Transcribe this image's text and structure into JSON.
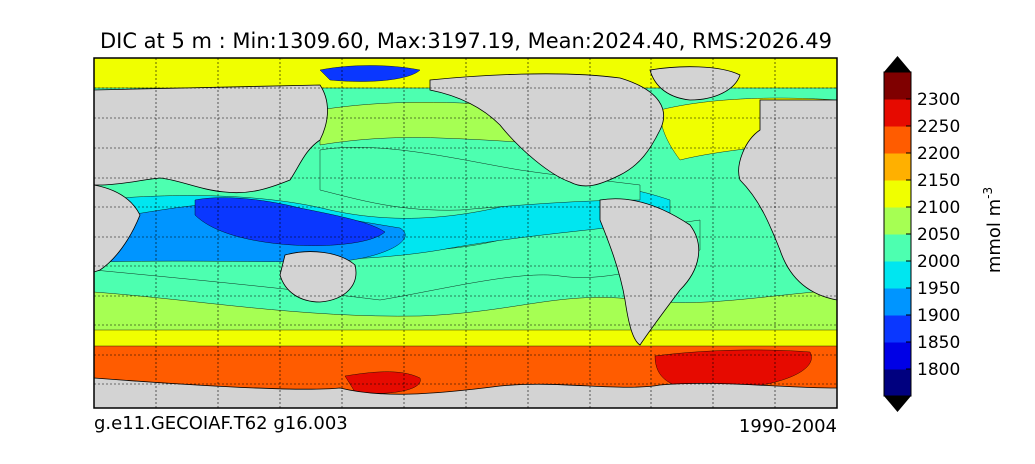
{
  "chart_data": {
    "type": "heatmap",
    "title": "DIC at 5 m : Min:1309.60, Max:3197.19, Mean:2024.40, RMS:2026.49",
    "footer_left": "g.e11.GECOIAF.T62 g16.003",
    "footer_right": "1990-2004",
    "colorbar": {
      "unit_label": "mmol m",
      "unit_exponent": "-3",
      "ticks": [
        1800,
        1850,
        1900,
        1950,
        2000,
        2050,
        2100,
        2150,
        2200,
        2250,
        2300
      ],
      "levels": [
        1750,
        1800,
        1850,
        1900,
        1950,
        2000,
        2050,
        2100,
        2150,
        2200,
        2250,
        2300,
        2350
      ],
      "colors": [
        "#00007f",
        "#0000e6",
        "#0a37ff",
        "#0095ff",
        "#00e6f0",
        "#4dffb0",
        "#a6ff53",
        "#f0ff00",
        "#ffb000",
        "#ff5c00",
        "#e60a00",
        "#7f0000"
      ],
      "extend": "both"
    },
    "map": {
      "grid": true,
      "land_color": "#d3d3d3",
      "region_values": [
        {
          "region": "southern-ocean-far-south",
          "value": 2200
        },
        {
          "region": "ross-weddell-seas",
          "value": 2250
        },
        {
          "region": "southern-ocean-band",
          "value": 2125
        },
        {
          "region": "sub-antarctic",
          "value": 2075
        },
        {
          "region": "subtropical-south",
          "value": 2025
        },
        {
          "region": "indo-pacific-warm-pool",
          "value": 1925
        },
        {
          "region": "maritime-continent",
          "value": 1875
        },
        {
          "region": "equatorial-pacific",
          "value": 1975
        },
        {
          "region": "north-pacific-subtropical",
          "value": 2025
        },
        {
          "region": "north-pacific-subpolar",
          "value": 2075
        },
        {
          "region": "north-atlantic-subpolar",
          "value": 2125
        },
        {
          "region": "arctic-siberian-shelf",
          "value": 1850
        }
      ]
    }
  }
}
